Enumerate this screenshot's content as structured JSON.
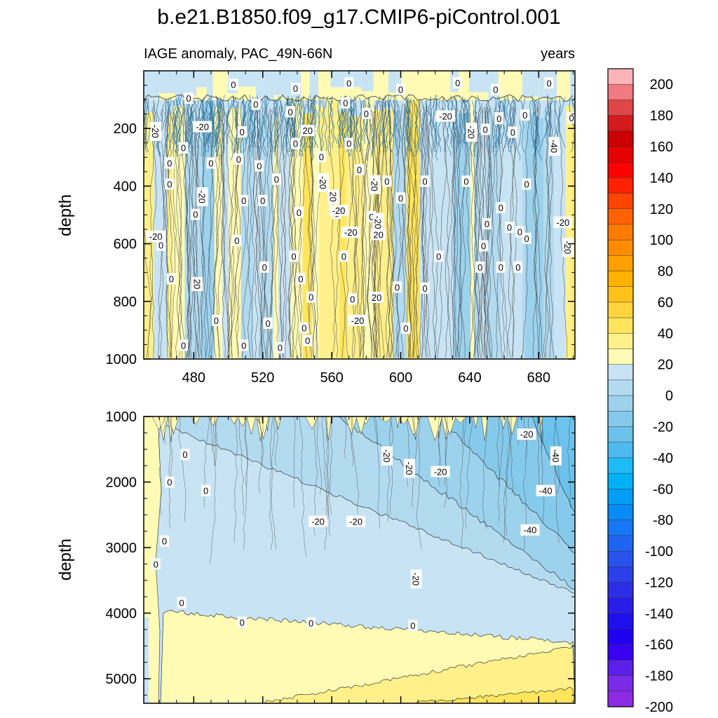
{
  "chart_data": {
    "type": "contour",
    "title": "b.e21.B1850.f09_g17.CMIP6-piControl.001",
    "subtitle_left": "IAGE anomaly, PAC_49N-66N",
    "subtitle_right": "years",
    "variable": "IAGE anomaly",
    "units": "years",
    "region": "PAC_49N-66N",
    "x": {
      "label": "",
      "range": [
        451,
        701
      ],
      "ticks": [
        480,
        520,
        560,
        600,
        640,
        680
      ]
    },
    "panels": [
      {
        "name": "upper",
        "ylabel": "depth",
        "ylim": [
          1000,
          0
        ],
        "yticks": [
          200,
          400,
          600,
          800,
          1000
        ],
        "contour_labels": [
          {
            "text": "0",
            "t": 477,
            "d": 95
          },
          {
            "text": "0",
            "t": 503,
            "d": 47
          },
          {
            "text": "0",
            "t": 539,
            "d": 61
          },
          {
            "text": "0",
            "t": 570,
            "d": 42
          },
          {
            "text": "0",
            "t": 600,
            "d": 64
          },
          {
            "text": "0",
            "t": 633,
            "d": 41
          },
          {
            "text": "0",
            "t": 655,
            "d": 65
          },
          {
            "text": "0",
            "t": 686,
            "d": 42
          },
          {
            "text": "0",
            "t": 516,
            "d": 116
          },
          {
            "text": "0",
            "t": 536,
            "d": 142
          },
          {
            "text": "0",
            "t": 568,
            "d": 111
          },
          {
            "text": "0",
            "t": 580,
            "d": 148
          },
          {
            "text": "0",
            "t": 657,
            "d": 163
          },
          {
            "text": "0",
            "t": 672,
            "d": 153
          },
          {
            "text": "0",
            "t": 699,
            "d": 163
          },
          {
            "text": "-20",
            "t": 458,
            "d": 210
          },
          {
            "text": "0",
            "t": 474,
            "d": 267
          },
          {
            "text": "0",
            "t": 466,
            "d": 320
          },
          {
            "text": "0",
            "t": 466,
            "d": 393
          },
          {
            "text": "0",
            "t": 490,
            "d": 320
          },
          {
            "text": "0",
            "t": 506,
            "d": 306
          },
          {
            "text": "0",
            "t": 508,
            "d": 212
          },
          {
            "text": "0",
            "t": 518,
            "d": 330
          },
          {
            "text": "0",
            "t": 528,
            "d": 376
          },
          {
            "text": "0",
            "t": 539,
            "d": 252
          },
          {
            "text": "0",
            "t": 554,
            "d": 298
          },
          {
            "text": "0",
            "t": 570,
            "d": 252
          },
          {
            "text": "0",
            "t": 576,
            "d": 343
          },
          {
            "text": "0",
            "t": 592,
            "d": 383
          },
          {
            "text": "0",
            "t": 614,
            "d": 383
          },
          {
            "text": "0",
            "t": 638,
            "d": 383
          },
          {
            "text": "0",
            "t": 649,
            "d": 203
          },
          {
            "text": "0",
            "t": 657,
            "d": 166
          },
          {
            "text": "0",
            "t": 665,
            "d": 213
          },
          {
            "text": "0",
            "t": 673,
            "d": 393
          },
          {
            "text": "-20",
            "t": 485,
            "d": 194
          },
          {
            "text": "-20",
            "t": 555,
            "d": 388
          },
          {
            "text": "-20",
            "t": 585,
            "d": 395
          },
          {
            "text": "-20",
            "t": 626,
            "d": 157
          },
          {
            "text": "-20",
            "t": 641,
            "d": 213
          },
          {
            "text": "-40",
            "t": 689,
            "d": 262
          },
          {
            "text": "20",
            "t": 546,
            "d": 207
          },
          {
            "text": "0",
            "t": 481,
            "d": 498
          },
          {
            "text": "0",
            "t": 509,
            "d": 450
          },
          {
            "text": "0",
            "t": 520,
            "d": 450
          },
          {
            "text": "0",
            "t": 541,
            "d": 491
          },
          {
            "text": "0",
            "t": 563,
            "d": 495
          },
          {
            "text": "0",
            "t": 600,
            "d": 441
          },
          {
            "text": "0",
            "t": 650,
            "d": 531
          },
          {
            "text": "0",
            "t": 669,
            "d": 559
          },
          {
            "text": "0",
            "t": 658,
            "d": 475
          },
          {
            "text": "0",
            "t": 583,
            "d": 506
          },
          {
            "text": "-20",
            "t": 458,
            "d": 574
          },
          {
            "text": "-20",
            "t": 485,
            "d": 437
          },
          {
            "text": "-20",
            "t": 564,
            "d": 484
          },
          {
            "text": "-20",
            "t": 571,
            "d": 560
          },
          {
            "text": "-20",
            "t": 587,
            "d": 526
          },
          {
            "text": "-20",
            "t": 694,
            "d": 525
          },
          {
            "text": "-20",
            "t": 697,
            "d": 613
          },
          {
            "text": "20",
            "t": 561,
            "d": 437
          },
          {
            "text": "20",
            "t": 587,
            "d": 568
          },
          {
            "text": "0",
            "t": 461,
            "d": 605
          },
          {
            "text": "0",
            "t": 505,
            "d": 589
          },
          {
            "text": "0",
            "t": 567,
            "d": 643
          },
          {
            "text": "0",
            "t": 538,
            "d": 643
          },
          {
            "text": "0",
            "t": 622,
            "d": 643
          },
          {
            "text": "0",
            "t": 648,
            "d": 607
          },
          {
            "text": "0",
            "t": 663,
            "d": 543
          },
          {
            "text": "0",
            "t": 673,
            "d": 581
          },
          {
            "text": "0",
            "t": 467,
            "d": 722
          },
          {
            "text": "20",
            "t": 482,
            "d": 740
          },
          {
            "text": "0",
            "t": 521,
            "d": 681
          },
          {
            "text": "0",
            "t": 542,
            "d": 721
          },
          {
            "text": "0",
            "t": 548,
            "d": 785
          },
          {
            "text": "0",
            "t": 572,
            "d": 792
          },
          {
            "text": "20",
            "t": 586,
            "d": 786
          },
          {
            "text": "0",
            "t": 598,
            "d": 750
          },
          {
            "text": "0",
            "t": 614,
            "d": 754
          },
          {
            "text": "0",
            "t": 646,
            "d": 681
          },
          {
            "text": "0",
            "t": 658,
            "d": 681
          },
          {
            "text": "0",
            "t": 668,
            "d": 681
          },
          {
            "text": "0",
            "t": 493,
            "d": 866
          },
          {
            "text": "-20",
            "t": 575,
            "d": 866
          },
          {
            "text": "0",
            "t": 523,
            "d": 876
          },
          {
            "text": "0",
            "t": 544,
            "d": 892
          },
          {
            "text": "0",
            "t": 603,
            "d": 893
          },
          {
            "text": "0",
            "t": 474,
            "d": 952
          },
          {
            "text": "0",
            "t": 509,
            "d": 952
          },
          {
            "text": "0",
            "t": 530,
            "d": 960
          },
          {
            "text": "0",
            "t": 546,
            "d": 936
          }
        ]
      },
      {
        "name": "lower",
        "ylabel": "depth",
        "ylim": [
          5375,
          1000
        ],
        "yticks": [
          1000,
          2000,
          3000,
          4000,
          5000
        ],
        "contour_labels": [
          {
            "text": "0",
            "t": 475,
            "d": 1580
          },
          {
            "text": "0",
            "t": 466,
            "d": 2000
          },
          {
            "text": "0",
            "t": 487,
            "d": 2130
          },
          {
            "text": "0",
            "t": 463,
            "d": 2900
          },
          {
            "text": "0",
            "t": 458,
            "d": 3250
          },
          {
            "text": "0",
            "t": 473,
            "d": 3840
          },
          {
            "text": "-20",
            "t": 552,
            "d": 2600
          },
          {
            "text": "-20",
            "t": 574,
            "d": 2600
          },
          {
            "text": "-20",
            "t": 592,
            "d": 1600
          },
          {
            "text": "-20",
            "t": 605,
            "d": 1790
          },
          {
            "text": "-20",
            "t": 623,
            "d": 1840
          },
          {
            "text": "-20",
            "t": 609,
            "d": 3480
          },
          {
            "text": "-20",
            "t": 673,
            "d": 1270
          },
          {
            "text": "-40",
            "t": 690,
            "d": 1600
          },
          {
            "text": "-40",
            "t": 684,
            "d": 2130
          },
          {
            "text": "-40",
            "t": 675,
            "d": 2730
          },
          {
            "text": "0",
            "t": 508,
            "d": 4140
          },
          {
            "text": "0",
            "t": 548,
            "d": 4150
          },
          {
            "text": "0",
            "t": 607,
            "d": 4190
          }
        ]
      }
    ],
    "colorbar": {
      "levels": [
        200,
        180,
        160,
        140,
        120,
        100,
        80,
        60,
        40,
        20,
        0,
        -20,
        -40,
        -60,
        -80,
        -100,
        -120,
        -140,
        -160,
        -180,
        -200
      ],
      "colors": [
        "#fbb4b9",
        "#f07a7f",
        "#e04646",
        "#d41a1a",
        "#cc0000",
        "#e60000",
        "#ff0000",
        "#ff2200",
        "#ff4400",
        "#ff6200",
        "#ff7a00",
        "#ff8c00",
        "#ffa000",
        "#ffb300",
        "#ffc21c",
        "#ffd43c",
        "#ffe55c",
        "#fff08a",
        "#fffbb5",
        "#c8e4f4",
        "#b3dbf0",
        "#9dd2ed",
        "#86caeb",
        "#6cc2ec",
        "#4ebbf0",
        "#1ebcf5",
        "#00b2f5",
        "#009ef5",
        "#0a8af5",
        "#1577f3",
        "#1f64f0",
        "#2752ec",
        "#2b40e8",
        "#2c2ee6",
        "#2a1de8",
        "#1e0fee",
        "#2000f0",
        "#3a00f0",
        "#5a1fe8",
        "#7a2ae8",
        "#8b2be2"
      ]
    }
  }
}
